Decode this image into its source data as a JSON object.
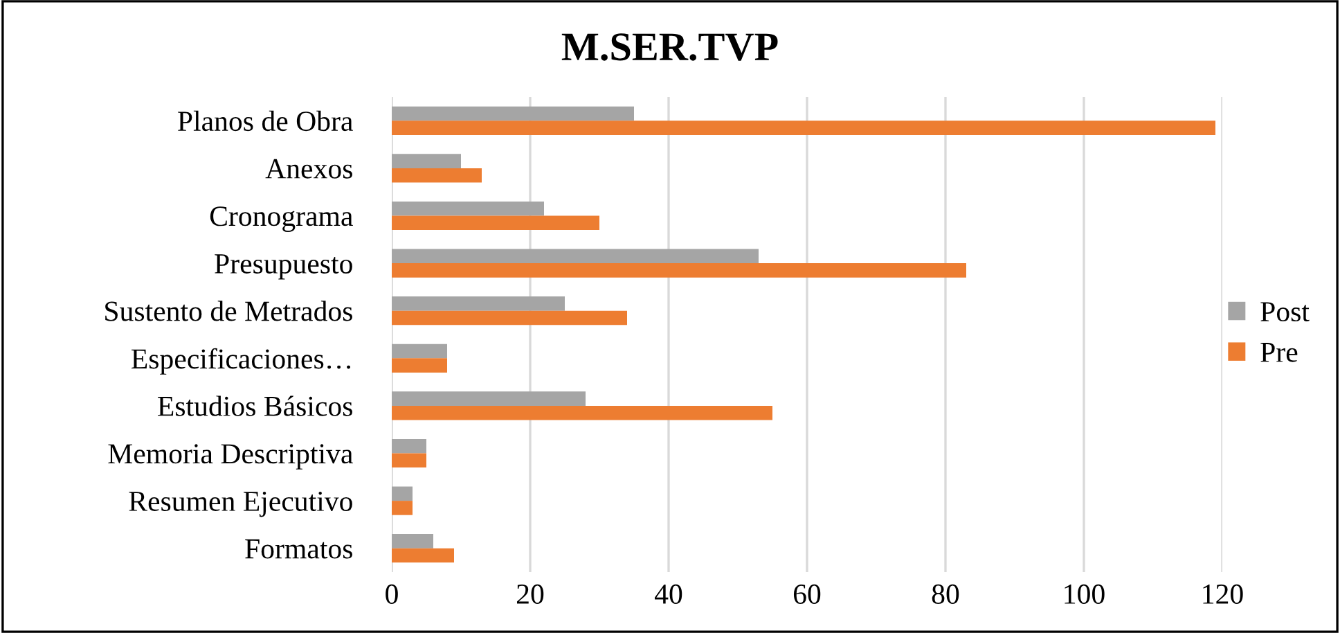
{
  "chart_data": {
    "type": "bar",
    "orientation": "horizontal",
    "title": "M.SER.TVP",
    "categories": [
      "Planos de Obra",
      "Anexos",
      "Cronograma",
      "Presupuesto",
      "Sustento de Metrados",
      "Especificaciones…",
      "Estudios Básicos",
      "Memoria Descriptiva",
      "Resumen Ejecutivo",
      "Formatos"
    ],
    "series": [
      {
        "name": "Post",
        "color": "#a5a5a5",
        "values": [
          35,
          10,
          22,
          53,
          25,
          8,
          28,
          5,
          3,
          6
        ]
      },
      {
        "name": "Pre",
        "color": "#ed7d31",
        "values": [
          119,
          13,
          30,
          83,
          34,
          8,
          55,
          5,
          3,
          9
        ]
      }
    ],
    "xlim": [
      0,
      120
    ],
    "xticks": [
      0,
      20,
      40,
      60,
      80,
      100,
      120
    ],
    "grid": "x",
    "legend": "right"
  }
}
